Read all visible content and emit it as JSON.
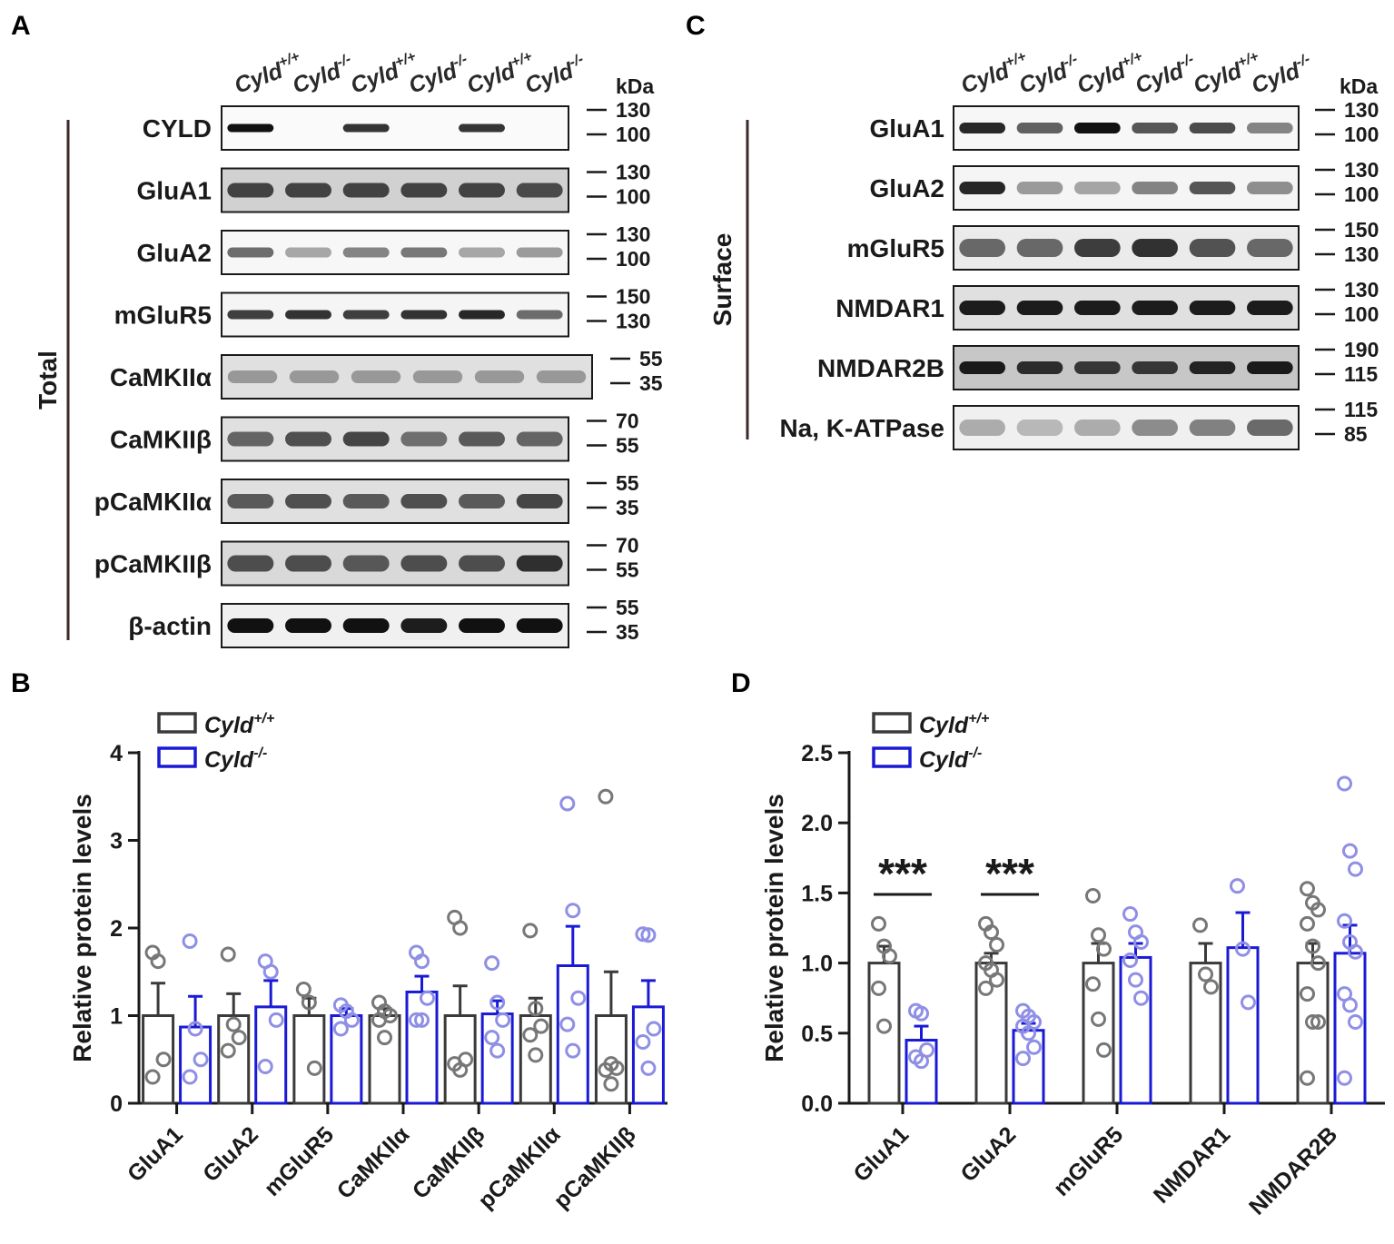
{
  "panels": {
    "A": "A",
    "B": "B",
    "C": "C",
    "D": "D"
  },
  "genotype": {
    "base": "Cyld",
    "wt_sup": "+/+",
    "ko_sup": "-/-",
    "lane_order": [
      "wt",
      "ko",
      "wt",
      "ko",
      "wt",
      "ko"
    ]
  },
  "kda_label": "kDa",
  "colors": {
    "wt": "#3a3a3a",
    "ko": "#1a1ad6",
    "ko_dot": "#8f8fe6",
    "wt_dot": "#777777"
  },
  "blotA": {
    "side_label": "Total",
    "rows": [
      {
        "label": "CYLD",
        "markers": [
          "130",
          "100"
        ]
      },
      {
        "label": "GluA1",
        "markers": [
          "130",
          "100"
        ]
      },
      {
        "label": "GluA2",
        "markers": [
          "130",
          "100"
        ]
      },
      {
        "label": "mGluR5",
        "markers": [
          "150",
          "130"
        ]
      },
      {
        "label": "CaMKIIα",
        "markers": [
          "55",
          "35"
        ]
      },
      {
        "label": "CaMKIIβ",
        "markers": [
          "70",
          "55"
        ]
      },
      {
        "label": "pCaMKIIα",
        "markers": [
          "55",
          "35"
        ]
      },
      {
        "label": "pCaMKIIβ",
        "markers": [
          "70",
          "55"
        ]
      },
      {
        "label": "β-actin",
        "markers": [
          "55",
          "35"
        ]
      }
    ]
  },
  "blotC": {
    "side_label": "Surface",
    "rows": [
      {
        "label": "GluA1",
        "markers": [
          "130",
          "100"
        ]
      },
      {
        "label": "GluA2",
        "markers": [
          "130",
          "100"
        ]
      },
      {
        "label": "mGluR5",
        "markers": [
          "150",
          "130"
        ]
      },
      {
        "label": "NMDAR1",
        "markers": [
          "130",
          "100"
        ]
      },
      {
        "label": "NMDAR2B",
        "markers": [
          "190",
          "115"
        ]
      },
      {
        "label": "Na, K-ATPase",
        "markers": [
          "115",
          "85"
        ]
      }
    ]
  },
  "chart_data": [
    {
      "panel": "B",
      "type": "bar",
      "title": "",
      "xlabel": "",
      "ylabel": "Relative protein levels",
      "ylim": [
        0,
        4
      ],
      "yticks": [
        "0",
        "1",
        "2",
        "3",
        "4"
      ],
      "categories": [
        "GluA1",
        "GluA2",
        "mGluR5",
        "CaMKIIα",
        "CaMKIIβ",
        "pCaMKIIα",
        "pCaMKIIβ"
      ],
      "legend": {
        "position": "top-left"
      },
      "series": [
        {
          "name": "Cyld+/+",
          "values": [
            1.0,
            1.0,
            1.0,
            1.0,
            1.0,
            1.0,
            1.0
          ],
          "errors": [
            0.37,
            0.25,
            0.2,
            0.08,
            0.34,
            0.2,
            0.5
          ],
          "points": [
            [
              1.72,
              1.62,
              0.5,
              0.3
            ],
            [
              1.7,
              0.9,
              0.75,
              0.6
            ],
            [
              1.3,
              1.15,
              0.4
            ],
            [
              1.15,
              1.05,
              1.0,
              0.95,
              0.75
            ],
            [
              2.12,
              2.0,
              0.5,
              0.45,
              0.38
            ],
            [
              1.97,
              1.08,
              0.88,
              0.78,
              0.55
            ],
            [
              3.5,
              0.45,
              0.4,
              0.38,
              0.22
            ]
          ]
        },
        {
          "name": "Cyld-/-",
          "values": [
            0.87,
            1.1,
            1.0,
            1.27,
            1.02,
            1.57,
            1.1
          ],
          "errors": [
            0.35,
            0.3,
            0.08,
            0.18,
            0.15,
            0.45,
            0.3
          ],
          "points": [
            [
              1.85,
              0.85,
              0.5,
              0.3
            ],
            [
              1.62,
              1.5,
              0.95,
              0.42
            ],
            [
              1.12,
              1.05,
              0.95,
              0.85
            ],
            [
              1.72,
              1.62,
              1.2,
              0.95,
              0.95
            ],
            [
              1.6,
              1.15,
              0.95,
              0.75,
              0.6
            ],
            [
              3.42,
              2.2,
              1.2,
              0.9,
              0.6
            ],
            [
              1.93,
              1.92,
              0.85,
              0.7,
              0.4
            ]
          ]
        }
      ]
    },
    {
      "panel": "D",
      "type": "bar",
      "title": "",
      "xlabel": "",
      "ylabel": "Relative protein levels",
      "ylim": [
        0,
        2.5
      ],
      "yticks": [
        "0.0",
        "0.5",
        "1.0",
        "1.5",
        "2.0",
        "2.5"
      ],
      "categories": [
        "GluA1",
        "GluA2",
        "mGluR5",
        "NMDAR1",
        "NMDAR2B"
      ],
      "legend": {
        "position": "top-left"
      },
      "annotations": [
        {
          "text": "***",
          "category_index": 0
        },
        {
          "text": "***",
          "category_index": 1
        }
      ],
      "series": [
        {
          "name": "Cyld+/+",
          "values": [
            1.0,
            1.0,
            1.0,
            1.0,
            1.0
          ],
          "errors": [
            0.12,
            0.07,
            0.14,
            0.14,
            0.14
          ],
          "points": [
            [
              1.28,
              1.12,
              1.05,
              0.82,
              0.55
            ],
            [
              1.28,
              1.22,
              1.13,
              1.0,
              0.95,
              0.88,
              0.82
            ],
            [
              1.48,
              1.2,
              1.1,
              0.85,
              0.6,
              0.38
            ],
            [
              1.27,
              0.92,
              0.83
            ],
            [
              1.53,
              1.43,
              1.38,
              1.28,
              1.12,
              1.0,
              0.78,
              0.58,
              0.58,
              0.18
            ]
          ]
        },
        {
          "name": "Cyld-/-",
          "values": [
            0.45,
            0.52,
            1.04,
            1.11,
            1.07
          ],
          "errors": [
            0.1,
            0.05,
            0.1,
            0.25,
            0.2
          ],
          "points": [
            [
              0.66,
              0.64,
              0.38,
              0.33,
              0.3
            ],
            [
              0.66,
              0.62,
              0.58,
              0.55,
              0.5,
              0.4,
              0.32
            ],
            [
              1.35,
              1.22,
              1.15,
              1.02,
              0.88,
              0.75
            ],
            [
              1.55,
              1.1,
              0.72
            ],
            [
              2.28,
              1.8,
              1.67,
              1.3,
              1.15,
              1.08,
              0.78,
              0.7,
              0.58,
              0.18
            ]
          ]
        }
      ]
    }
  ]
}
